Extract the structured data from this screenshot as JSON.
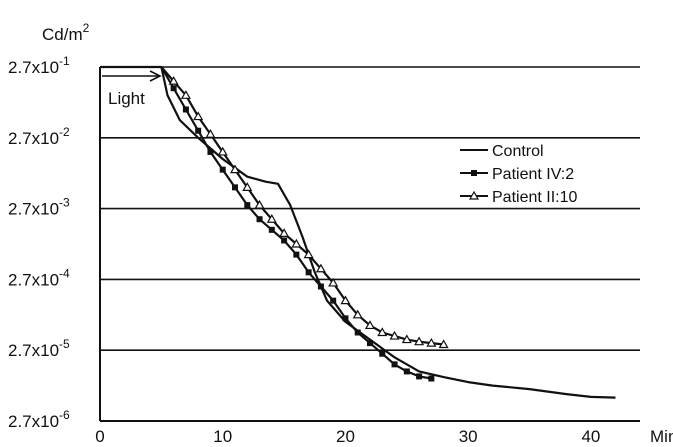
{
  "chart_data": {
    "type": "line",
    "y_unit": "Cd/m",
    "y_unit_exp": "2",
    "x_unit": "Min",
    "y_scale": "log",
    "y_ticks": [
      {
        "base": "2.7x10",
        "exp": "-1"
      },
      {
        "base": "2.7x10",
        "exp": "-2"
      },
      {
        "base": "2.7x10",
        "exp": "-3"
      },
      {
        "base": "2.7x10",
        "exp": "-4"
      },
      {
        "base": "2.7x10",
        "exp": "-5"
      },
      {
        "base": "2.7x10",
        "exp": "-6"
      }
    ],
    "x_ticks": [
      "0",
      "10",
      "20",
      "30",
      "40"
    ],
    "xlim": [
      0,
      44
    ],
    "ylim_log10": [
      -6,
      -1
    ],
    "grid": "horizontal",
    "annotation": "Light",
    "legend_placement": "right",
    "series": [
      {
        "name": "Control",
        "marker": "none",
        "points": [
          [
            0,
            -1
          ],
          [
            5,
            -1
          ],
          [
            5.5,
            -1.4
          ],
          [
            6.5,
            -1.75
          ],
          [
            8,
            -2.0
          ],
          [
            10,
            -2.3
          ],
          [
            12,
            -2.55
          ],
          [
            13.5,
            -2.62
          ],
          [
            14.5,
            -2.65
          ],
          [
            15.5,
            -2.95
          ],
          [
            16.5,
            -3.4
          ],
          [
            17.5,
            -3.9
          ],
          [
            18.5,
            -4.3
          ],
          [
            20,
            -4.6
          ],
          [
            22,
            -4.85
          ],
          [
            24,
            -5.1
          ],
          [
            26,
            -5.3
          ],
          [
            28,
            -5.38
          ],
          [
            30,
            -5.45
          ],
          [
            32,
            -5.5
          ],
          [
            35,
            -5.55
          ],
          [
            38,
            -5.62
          ],
          [
            40,
            -5.66
          ],
          [
            42,
            -5.67
          ]
        ]
      },
      {
        "name": "Patient IV:2",
        "marker": "square",
        "points": [
          [
            5,
            -1
          ],
          [
            6,
            -1.3
          ],
          [
            7,
            -1.6
          ],
          [
            8,
            -1.9
          ],
          [
            9,
            -2.2
          ],
          [
            10,
            -2.45
          ],
          [
            11,
            -2.7
          ],
          [
            12,
            -2.95
          ],
          [
            13,
            -3.15
          ],
          [
            14,
            -3.3
          ],
          [
            15,
            -3.45
          ],
          [
            16,
            -3.65
          ],
          [
            17,
            -3.9
          ],
          [
            18,
            -4.1
          ],
          [
            19,
            -4.3
          ],
          [
            20,
            -4.55
          ],
          [
            21,
            -4.75
          ],
          [
            22,
            -4.9
          ],
          [
            23,
            -5.05
          ],
          [
            24,
            -5.2
          ],
          [
            25,
            -5.3
          ],
          [
            26,
            -5.37
          ],
          [
            27,
            -5.4
          ]
        ]
      },
      {
        "name": "Patient II:10",
        "marker": "triangle",
        "points": [
          [
            5,
            -1
          ],
          [
            6,
            -1.2
          ],
          [
            7,
            -1.4
          ],
          [
            8,
            -1.7
          ],
          [
            9,
            -1.95
          ],
          [
            10,
            -2.2
          ],
          [
            11,
            -2.45
          ],
          [
            12,
            -2.7
          ],
          [
            13,
            -2.95
          ],
          [
            14,
            -3.15
          ],
          [
            15,
            -3.35
          ],
          [
            16,
            -3.5
          ],
          [
            17,
            -3.65
          ],
          [
            18,
            -3.85
          ],
          [
            19,
            -4.05
          ],
          [
            20,
            -4.3
          ],
          [
            21,
            -4.5
          ],
          [
            22,
            -4.65
          ],
          [
            23,
            -4.75
          ],
          [
            24,
            -4.8
          ],
          [
            25,
            -4.85
          ],
          [
            26,
            -4.88
          ],
          [
            27,
            -4.9
          ],
          [
            28,
            -4.92
          ]
        ]
      }
    ]
  }
}
